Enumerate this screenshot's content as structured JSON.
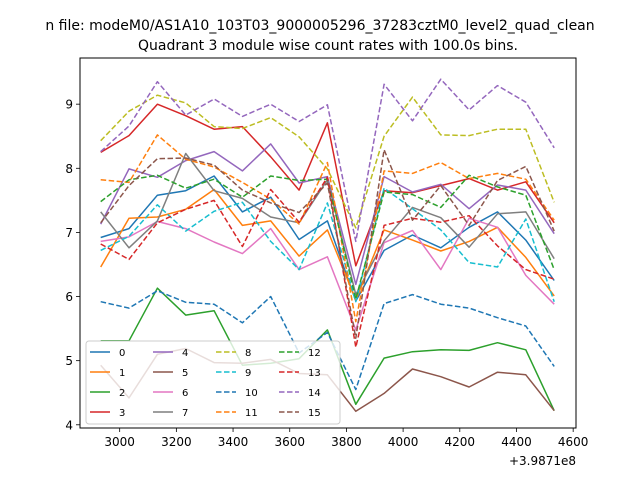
{
  "chart_data": {
    "type": "line",
    "suptitle": "n file: modeM0/AS1A10_103T03_9000005296_37283cztM0_level2_quad_clean",
    "title": "Quadrant 3 module wise count rates with 100.0s bins.",
    "xlabel": "",
    "ylabel": "",
    "x_offset_label": "+3.9871e8",
    "xlim": [
      2860,
      4610
    ],
    "ylim": [
      3.95,
      9.72
    ],
    "xticks": [
      3000,
      3200,
      3400,
      3600,
      3800,
      4000,
      4200,
      4400,
      4600
    ],
    "yticks": [
      4,
      5,
      6,
      7,
      8,
      9
    ],
    "grid": false,
    "legend_position": "lower-left",
    "x": [
      2933,
      3033,
      3133,
      3233,
      3333,
      3433,
      3533,
      3633,
      3733,
      3833,
      3933,
      4033,
      4133,
      4233,
      4333,
      4433,
      4533
    ],
    "series": [
      {
        "name": "0",
        "color": "#1f77b4",
        "dash": "solid",
        "values": [
          6.92,
          7.06,
          7.58,
          7.65,
          7.88,
          7.32,
          7.55,
          6.89,
          7.18,
          5.93,
          6.72,
          6.96,
          6.76,
          7.08,
          7.32,
          6.88,
          6.25
        ]
      },
      {
        "name": "1",
        "color": "#ff7f0e",
        "dash": "solid",
        "values": [
          6.46,
          7.22,
          7.24,
          7.36,
          7.67,
          7.11,
          7.18,
          6.63,
          7.04,
          5.95,
          7.04,
          6.88,
          6.71,
          6.86,
          7.08,
          6.61,
          6.01
        ]
      },
      {
        "name": "2",
        "color": "#2ca02c",
        "dash": "solid",
        "values": [
          5.31,
          5.31,
          6.13,
          5.71,
          5.78,
          4.93,
          4.96,
          5.03,
          5.48,
          4.32,
          5.04,
          5.14,
          5.17,
          5.16,
          5.28,
          5.17,
          4.22
        ]
      },
      {
        "name": "3",
        "color": "#d62728",
        "dash": "solid",
        "values": [
          8.25,
          8.51,
          9.0,
          8.82,
          8.61,
          8.65,
          8.18,
          7.66,
          8.71,
          6.48,
          7.65,
          7.62,
          7.73,
          7.84,
          7.66,
          7.79,
          7.15
        ]
      },
      {
        "name": "4",
        "color": "#9467bd",
        "dash": "solid",
        "values": [
          7.13,
          7.99,
          7.86,
          8.12,
          8.26,
          7.96,
          8.38,
          7.77,
          7.87,
          6.19,
          7.87,
          7.63,
          7.75,
          7.37,
          7.74,
          7.66,
          6.98
        ]
      },
      {
        "name": "5",
        "color": "#8c564b",
        "dash": "solid",
        "values": [
          4.93,
          4.42,
          5.1,
          5.19,
          4.97,
          4.96,
          5.02,
          4.8,
          4.78,
          4.21,
          4.49,
          4.87,
          4.75,
          4.59,
          4.82,
          4.78,
          4.22
        ]
      },
      {
        "name": "6",
        "color": "#e377c2",
        "dash": "solid",
        "values": [
          6.86,
          6.93,
          7.17,
          7.06,
          6.85,
          6.67,
          7.06,
          6.42,
          6.62,
          5.48,
          6.84,
          7.03,
          6.42,
          7.22,
          7.08,
          6.33,
          5.88
        ]
      },
      {
        "name": "7",
        "color": "#7f7f7f",
        "dash": "solid",
        "values": [
          7.32,
          6.76,
          7.18,
          8.23,
          7.65,
          7.53,
          7.24,
          7.15,
          7.82,
          6.03,
          6.87,
          7.39,
          7.23,
          6.77,
          7.29,
          7.32,
          6.59
        ]
      },
      {
        "name": "8",
        "color": "#bcbd22",
        "dash": "dashed",
        "values": [
          8.43,
          8.89,
          9.14,
          9.02,
          8.65,
          8.62,
          8.79,
          8.49,
          7.99,
          7.07,
          8.5,
          9.11,
          8.52,
          8.51,
          8.61,
          8.61,
          7.47
        ]
      },
      {
        "name": "9",
        "color": "#17becf",
        "dash": "dashed",
        "values": [
          6.72,
          6.94,
          7.43,
          7.02,
          7.33,
          7.47,
          6.86,
          6.42,
          7.46,
          5.92,
          7.69,
          7.37,
          7.04,
          6.53,
          6.46,
          7.21,
          5.92
        ]
      },
      {
        "name": "10",
        "color": "#1f77b4",
        "dash": "dashed",
        "values": [
          5.92,
          5.82,
          6.09,
          5.91,
          5.88,
          5.59,
          6.0,
          5.12,
          5.44,
          4.55,
          5.89,
          6.03,
          5.88,
          5.82,
          5.67,
          5.54,
          4.91
        ]
      },
      {
        "name": "11",
        "color": "#ff7f0e",
        "dash": "dashed",
        "values": [
          7.82,
          7.78,
          8.52,
          8.14,
          8.02,
          7.78,
          7.52,
          7.13,
          8.09,
          5.61,
          7.96,
          7.92,
          8.09,
          7.84,
          7.92,
          7.83,
          7.19
        ]
      },
      {
        "name": "12",
        "color": "#2ca02c",
        "dash": "dashed",
        "values": [
          7.48,
          7.82,
          7.89,
          7.69,
          7.83,
          7.55,
          7.88,
          7.81,
          7.83,
          5.96,
          7.63,
          7.59,
          7.39,
          7.89,
          7.71,
          7.58,
          6.42
        ]
      },
      {
        "name": "13",
        "color": "#d62728",
        "dash": "dashed",
        "values": [
          6.82,
          6.58,
          7.15,
          7.36,
          7.5,
          6.78,
          7.67,
          7.16,
          7.86,
          5.21,
          7.11,
          7.22,
          7.16,
          7.26,
          6.79,
          6.42,
          6.27
        ]
      },
      {
        "name": "14",
        "color": "#9467bd",
        "dash": "dashed",
        "values": [
          8.26,
          8.66,
          9.35,
          8.83,
          9.08,
          8.81,
          9.0,
          8.73,
          8.99,
          6.86,
          9.31,
          8.74,
          9.39,
          8.91,
          9.29,
          9.03,
          8.32
        ]
      },
      {
        "name": "15",
        "color": "#8c564b",
        "dash": "dashed",
        "values": [
          7.15,
          7.73,
          8.15,
          8.16,
          8.05,
          7.66,
          7.46,
          7.31,
          7.77,
          5.35,
          8.29,
          7.19,
          7.73,
          7.11,
          7.81,
          8.03,
          7.02
        ]
      }
    ]
  }
}
